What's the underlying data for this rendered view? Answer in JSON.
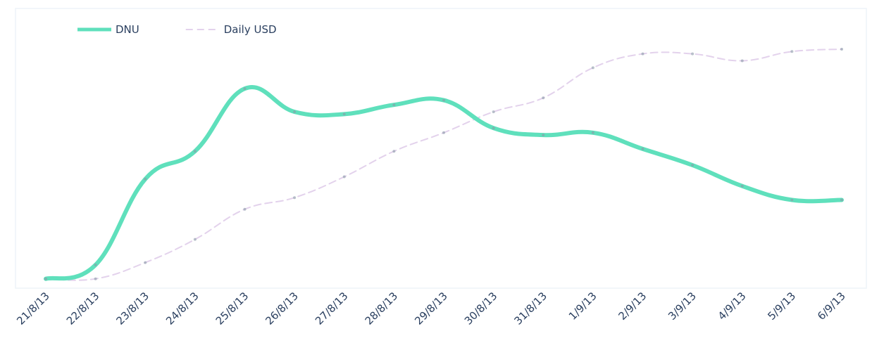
{
  "chart_data": {
    "type": "line",
    "categories": [
      "21/8/13",
      "22/8/13",
      "23/8/13",
      "24/8/13",
      "25/8/13",
      "26/8/13",
      "27/8/13",
      "28/8/13",
      "29/8/13",
      "30/8/13",
      "31/8/13",
      "1/9/13",
      "2/9/13",
      "3/9/13",
      "4/9/13",
      "5/9/13",
      "6/9/13"
    ],
    "series": [
      {
        "name": "DNU",
        "color": "#5fe0bc",
        "dash": false,
        "values": [
          1,
          7,
          44,
          56,
          83,
          73,
          72,
          76,
          78,
          66,
          63,
          64,
          57,
          50,
          41,
          35,
          35
        ]
      },
      {
        "name": "Daily USD",
        "color": "#e3d2ec",
        "dash": true,
        "values": [
          1,
          1,
          8,
          18,
          31,
          36,
          45,
          56,
          64,
          73,
          79,
          92,
          98,
          98,
          95,
          99,
          100
        ]
      }
    ],
    "legend": "top-left"
  }
}
